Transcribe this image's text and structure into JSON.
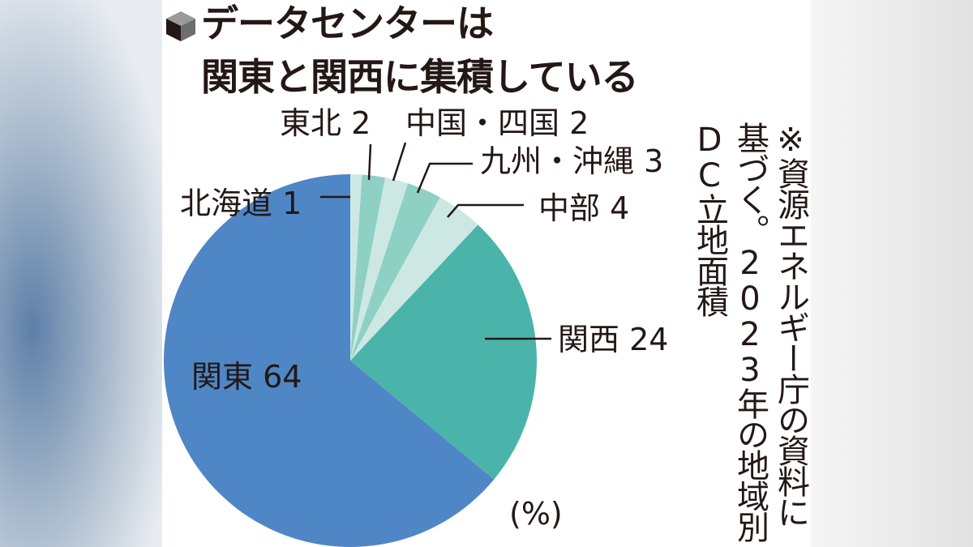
{
  "title": {
    "line1": "データセンターは",
    "line2": "関東と関西に集積している"
  },
  "note": {
    "line1": "※資源エネルギー庁の資料に",
    "line2": "基づく。2023年の地域別",
    "line3": "DC立地面積"
  },
  "unit": "(%)",
  "chart_data": {
    "type": "pie",
    "title": "データセンターは関東と関西に集積している",
    "unit": "%",
    "start": "top",
    "direction": "clockwise",
    "slices": [
      {
        "label": "北海道",
        "value": 1,
        "color": "#cde8e2"
      },
      {
        "label": "東北",
        "value": 2,
        "color": "#8fd0c5"
      },
      {
        "label": "中国・四国",
        "value": 2,
        "color": "#cde8e2"
      },
      {
        "label": "九州・沖縄",
        "value": 3,
        "color": "#8fd0c5"
      },
      {
        "label": "中部",
        "value": 4,
        "color": "#cde8e2"
      },
      {
        "label": "関西",
        "value": 24,
        "color": "#4bb4aa"
      },
      {
        "label": "関東",
        "value": 64,
        "color": "#4f86c6"
      }
    ]
  }
}
